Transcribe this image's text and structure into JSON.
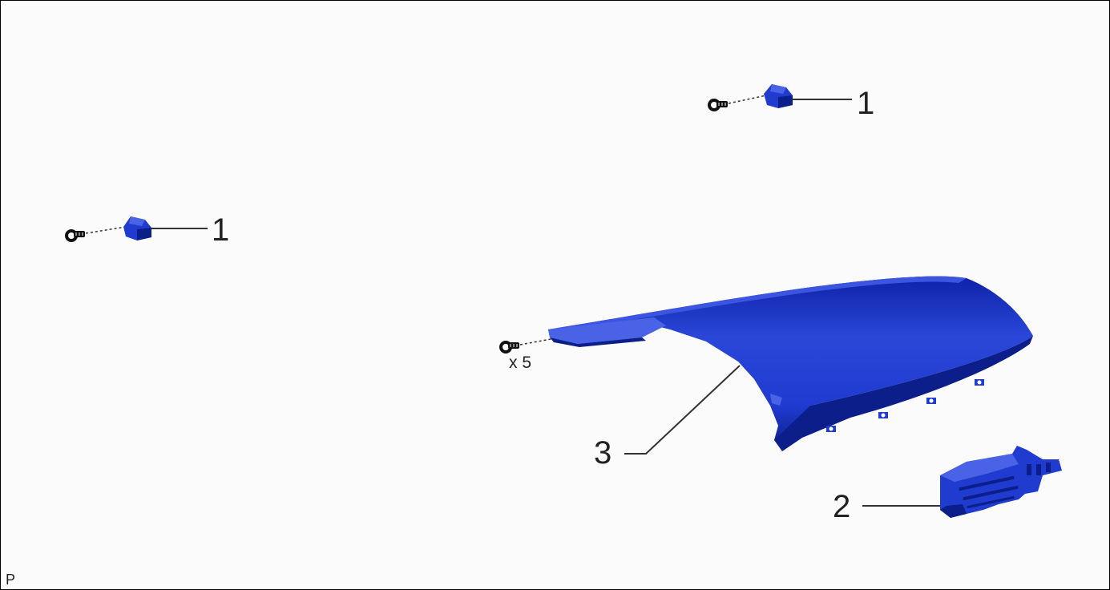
{
  "diagram": {
    "callouts": {
      "clip_top": "1",
      "clip_left": "1",
      "cover": "3",
      "bracket": "2"
    },
    "screw_quantity": "x 5",
    "corner_mark": "P",
    "colors": {
      "part_blue": "#1f3bd0",
      "part_dark": "#0c1e8a",
      "part_light": "#4a63e6",
      "leader": "#333333",
      "background": "#fbfbfb"
    }
  }
}
